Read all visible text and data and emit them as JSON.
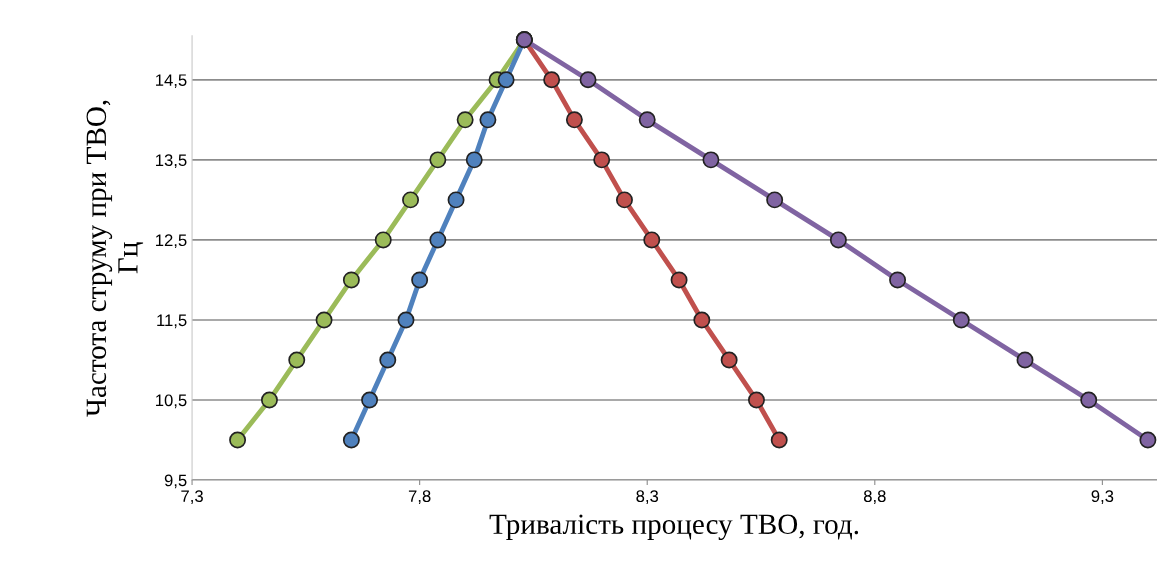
{
  "chart_data": {
    "type": "line",
    "xlabel": "Тривалість процесу ТВО, год.",
    "ylabel": "Частота струму при ТВО,\nГц",
    "xlim": [
      7.3,
      9.42
    ],
    "xticks": [
      {
        "value": 7.3,
        "label": "7,3"
      },
      {
        "value": 7.8,
        "label": "7,8"
      },
      {
        "value": 8.3,
        "label": "8,3"
      },
      {
        "value": 8.8,
        "label": "8,8"
      },
      {
        "value": 9.3,
        "label": "9,3"
      }
    ],
    "ylim": [
      9.5,
      15.05
    ],
    "yticks": [
      {
        "value": 9.5,
        "label": "9,5"
      },
      {
        "value": 10.5,
        "label": "10,5"
      },
      {
        "value": 11.5,
        "label": "11,5"
      },
      {
        "value": 12.5,
        "label": "12,5"
      },
      {
        "value": 13.5,
        "label": "13,5"
      },
      {
        "value": 14.5,
        "label": "14,5"
      }
    ],
    "grid": "y",
    "marker": "circle",
    "line_style": "solid",
    "series": [
      {
        "color": "#9bbb59",
        "x": [
          7.4,
          7.47,
          7.53,
          7.59,
          7.65,
          7.72,
          7.78,
          7.84,
          7.9,
          7.97,
          8.03
        ],
        "values": [
          10,
          10.5,
          11,
          11.5,
          12,
          12.5,
          13,
          13.5,
          14,
          14.5,
          15
        ]
      },
      {
        "color": "#4f81bd",
        "x": [
          7.65,
          7.69,
          7.73,
          7.77,
          7.8,
          7.84,
          7.88,
          7.92,
          7.95,
          7.99,
          8.03
        ],
        "values": [
          10,
          10.5,
          11,
          11.5,
          12,
          12.5,
          13,
          13.5,
          14,
          14.5,
          15
        ]
      },
      {
        "color": "#c0504d",
        "x": [
          8.59,
          8.54,
          8.48,
          8.42,
          8.37,
          8.31,
          8.25,
          8.2,
          8.14,
          8.09,
          8.03
        ],
        "values": [
          10,
          10.5,
          11,
          11.5,
          12,
          12.5,
          13,
          13.5,
          14,
          14.5,
          15
        ]
      },
      {
        "color": "#8064a2",
        "x": [
          9.4,
          9.27,
          9.13,
          8.99,
          8.85,
          8.72,
          8.58,
          8.44,
          8.3,
          8.17,
          8.03
        ],
        "values": [
          10,
          10.5,
          11,
          11.5,
          12,
          12.5,
          13,
          13.5,
          14,
          14.5,
          15
        ]
      }
    ]
  }
}
